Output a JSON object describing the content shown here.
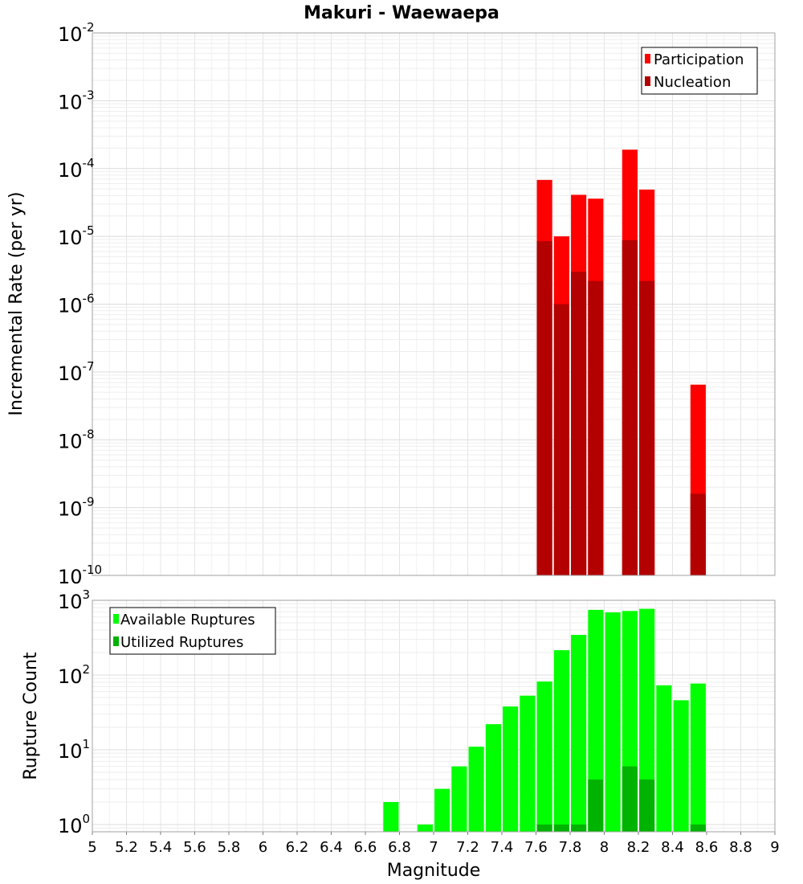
{
  "chart_data": [
    {
      "type": "bar",
      "title": "Makuri - Waewaepa",
      "xlabel": "Magnitude",
      "ylabel": "Incremental Rate (per yr)",
      "yscale": "log",
      "xlim": [
        5,
        9
      ],
      "ylim": [
        1e-10,
        0.01
      ],
      "grid": true,
      "legend_position": "top-right",
      "bar_width": 0.09,
      "x": [
        7.65,
        7.75,
        7.85,
        7.95,
        8.15,
        8.25,
        8.55
      ],
      "series": [
        {
          "name": "Participation",
          "color": "#ff0000",
          "values": [
            6.8e-05,
            1e-05,
            4.1e-05,
            3.6e-05,
            0.00019,
            4.9e-05,
            6.5e-08
          ]
        },
        {
          "name": "Nucleation",
          "color": "#b30000",
          "values": [
            8.5e-06,
            1e-06,
            3e-06,
            2.2e-06,
            8.8e-06,
            2.2e-06,
            1.6e-09
          ]
        }
      ],
      "y_ticks": [
        {
          "base": "10",
          "exp": "-10",
          "value": 1e-10
        },
        {
          "base": "10",
          "exp": "-9",
          "value": 1e-09
        },
        {
          "base": "10",
          "exp": "-8",
          "value": 1e-08
        },
        {
          "base": "10",
          "exp": "-7",
          "value": 1e-07
        },
        {
          "base": "10",
          "exp": "-6",
          "value": 1e-06
        },
        {
          "base": "10",
          "exp": "-5",
          "value": 1e-05
        },
        {
          "base": "10",
          "exp": "-4",
          "value": 0.0001
        },
        {
          "base": "10",
          "exp": "-3",
          "value": 0.001
        },
        {
          "base": "10",
          "exp": "-2",
          "value": 0.01
        }
      ]
    },
    {
      "type": "bar",
      "title": "",
      "xlabel": "Magnitude",
      "ylabel": "Rupture Count",
      "yscale": "log",
      "xlim": [
        5,
        9
      ],
      "ylim": [
        0.8,
        1000
      ],
      "grid": true,
      "legend_position": "top-left",
      "bar_width": 0.09,
      "x": [
        6.75,
        6.95,
        7.05,
        7.15,
        7.25,
        7.35,
        7.45,
        7.55,
        7.65,
        7.75,
        7.85,
        7.95,
        8.05,
        8.15,
        8.25,
        8.35,
        8.45,
        8.55
      ],
      "series": [
        {
          "name": "Available Ruptures",
          "color": "#00ff00",
          "values": [
            2,
            1,
            3,
            6,
            11,
            22,
            38,
            53,
            82,
            215,
            345,
            745,
            690,
            720,
            770,
            73,
            46,
            77
          ]
        },
        {
          "name": "Utilized Ruptures",
          "color": "#00b300",
          "values": [
            0,
            0,
            0,
            0,
            0,
            0,
            0,
            0,
            1,
            1,
            1,
            4,
            0,
            6,
            4,
            0,
            0,
            1
          ]
        }
      ],
      "y_ticks": [
        {
          "base": "10",
          "exp": "0",
          "value": 1
        },
        {
          "base": "10",
          "exp": "1",
          "value": 10
        },
        {
          "base": "10",
          "exp": "2",
          "value": 100
        },
        {
          "base": "10",
          "exp": "3",
          "value": 1000
        }
      ],
      "x_tick_labels": [
        "5",
        "5.2",
        "5.4",
        "5.6",
        "5.8",
        "6",
        "6.2",
        "6.4",
        "6.6",
        "6.8",
        "7",
        "7.2",
        "7.4",
        "7.6",
        "7.8",
        "8",
        "8.2",
        "8.4",
        "8.6",
        "8.8",
        "9"
      ]
    }
  ]
}
